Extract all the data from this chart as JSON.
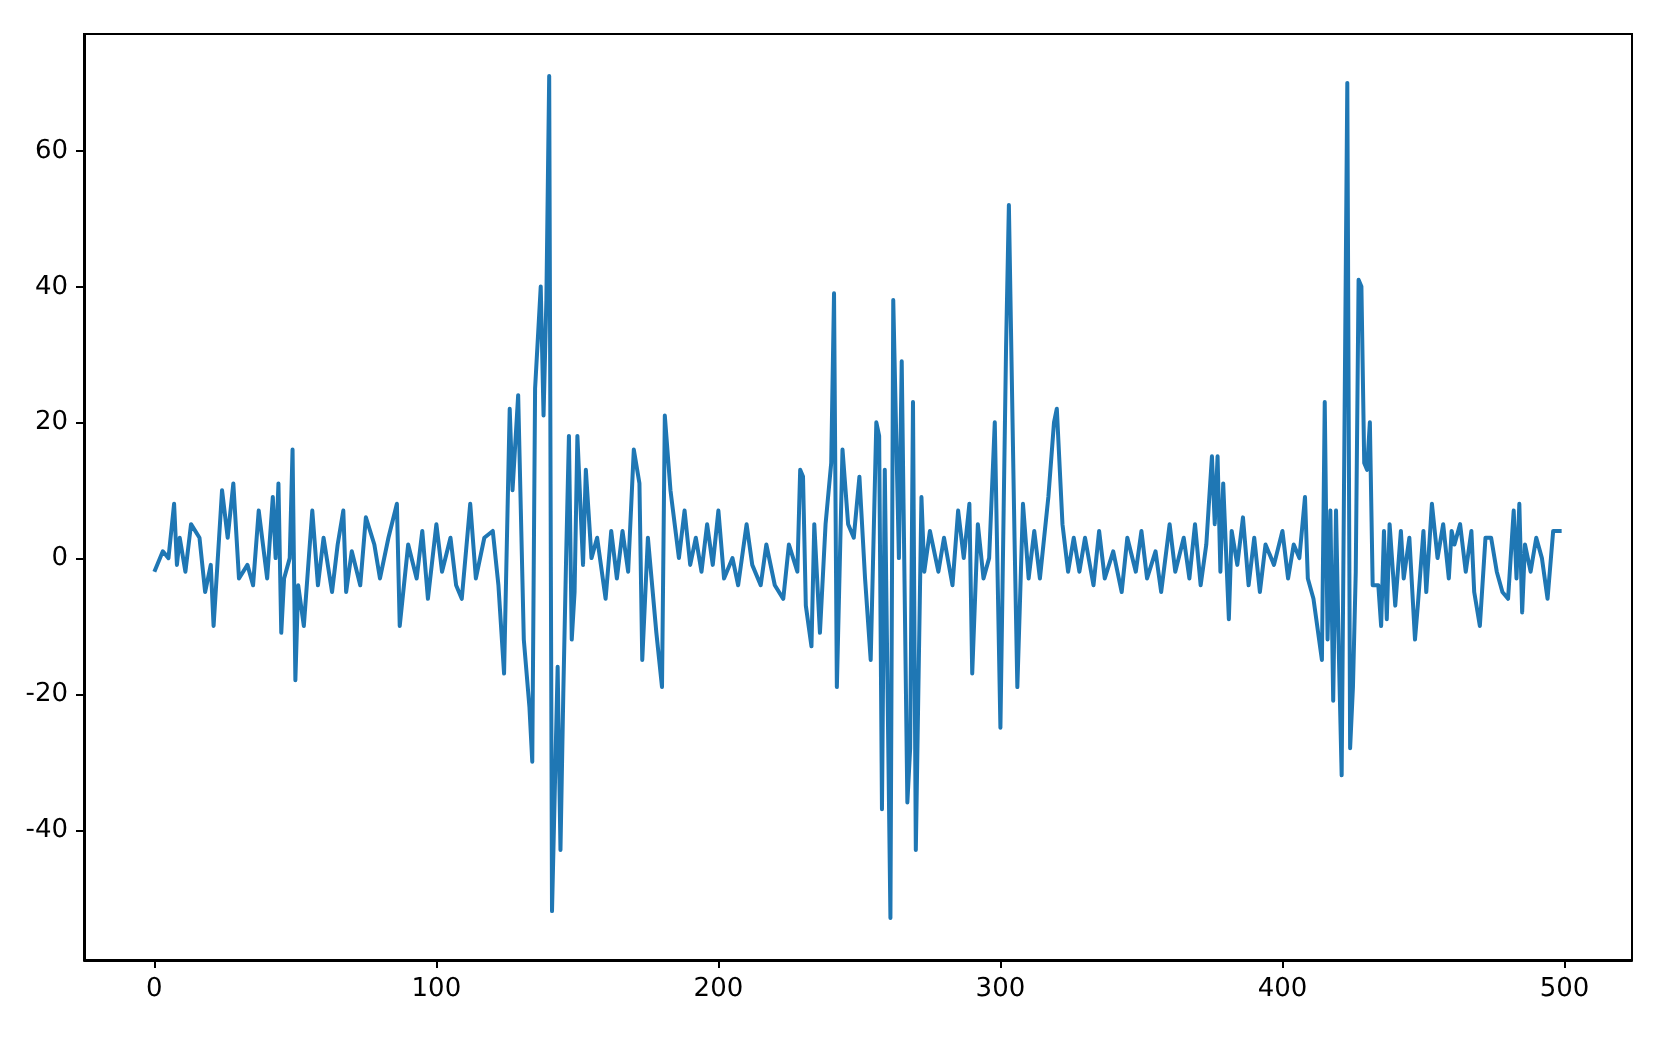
{
  "chart_data": {
    "type": "line",
    "color": "#1f77b4",
    "marker": "none",
    "line_style": "solid",
    "grid": false,
    "xlim": [
      -24.95,
      523.95
    ],
    "ylim": [
      -59.2,
      77.2
    ],
    "xticks": [
      0,
      100,
      200,
      300,
      400,
      500
    ],
    "yticks": [
      -40,
      -20,
      0,
      20,
      40,
      60
    ],
    "x": [
      0,
      3,
      5,
      7,
      8,
      9,
      11,
      13,
      16,
      18,
      20,
      21,
      24,
      26,
      28,
      30,
      33,
      35,
      37,
      40,
      42,
      43,
      44,
      45,
      46,
      48,
      49,
      50,
      51,
      53,
      56,
      58,
      60,
      63,
      65,
      67,
      68,
      70,
      73,
      75,
      78,
      80,
      83,
      86,
      87,
      90,
      93,
      95,
      97,
      100,
      102,
      105,
      107,
      109,
      112,
      114,
      117,
      120,
      122,
      124,
      126,
      127,
      129,
      131,
      133,
      134,
      135,
      137,
      138,
      139,
      140,
      141,
      143,
      144,
      145,
      146,
      147,
      148,
      149,
      150,
      152,
      153,
      155,
      157,
      160,
      162,
      164,
      166,
      168,
      170,
      172,
      173,
      175,
      178,
      180,
      181,
      183,
      186,
      188,
      190,
      192,
      194,
      196,
      198,
      200,
      202,
      205,
      207,
      210,
      212,
      215,
      217,
      220,
      223,
      225,
      228,
      229,
      230,
      231,
      233,
      234,
      236,
      238,
      240,
      241,
      242,
      244,
      246,
      248,
      250,
      252,
      254,
      256,
      257,
      258,
      259,
      261,
      262,
      264,
      265,
      267,
      268,
      269,
      270,
      272,
      273,
      275,
      278,
      280,
      283,
      285,
      287,
      289,
      290,
      292,
      294,
      296,
      298,
      300,
      302,
      303,
      305,
      306,
      308,
      310,
      312,
      314,
      317,
      319,
      320,
      322,
      324,
      326,
      328,
      330,
      333,
      335,
      337,
      340,
      343,
      345,
      348,
      350,
      352,
      355,
      357,
      360,
      362,
      365,
      367,
      369,
      371,
      373,
      375,
      376,
      377,
      378,
      379,
      381,
      382,
      384,
      386,
      388,
      390,
      392,
      394,
      397,
      400,
      402,
      404,
      406,
      408,
      409,
      411,
      414,
      415,
      416,
      417,
      418,
      419,
      420,
      421,
      423,
      424,
      425,
      426,
      427,
      428,
      429,
      430,
      431,
      432,
      434,
      435,
      436,
      437,
      438,
      440,
      442,
      443,
      445,
      447,
      448,
      450,
      451,
      453,
      455,
      457,
      459,
      460,
      461,
      463,
      465,
      467,
      468,
      470,
      472,
      474,
      476,
      478,
      480,
      482,
      483,
      484,
      485,
      486,
      488,
      490,
      492,
      494,
      496,
      499
    ],
    "values": [
      -2,
      1,
      0,
      8,
      -1,
      3,
      -2,
      5,
      3,
      -5,
      -1,
      -10,
      10,
      3,
      11,
      -3,
      -1,
      -4,
      7,
      -3,
      9,
      0,
      11,
      -11,
      -3,
      0,
      16,
      -18,
      -4,
      -10,
      7,
      -4,
      3,
      -5,
      2,
      7,
      -5,
      1,
      -4,
      6,
      2,
      -3,
      3,
      8,
      -10,
      2,
      -3,
      4,
      -6,
      5,
      -2,
      3,
      -4,
      -6,
      8,
      -3,
      3,
      4,
      -4,
      -17,
      22,
      10,
      24,
      -12,
      -22,
      -30,
      25,
      40,
      21,
      38,
      71,
      -52,
      -16,
      -43,
      -20,
      0,
      18,
      -12,
      -5,
      18,
      -1,
      13,
      0,
      3,
      -6,
      4,
      -3,
      4,
      -2,
      16,
      11,
      -15,
      3,
      -11,
      -19,
      21,
      10,
      0,
      7,
      -1,
      3,
      -2,
      5,
      -1,
      7,
      -3,
      0,
      -4,
      5,
      -1,
      -4,
      2,
      -4,
      -6,
      2,
      -2,
      13,
      12,
      -7,
      -13,
      5,
      -11,
      5,
      14,
      39,
      -19,
      16,
      5,
      3,
      12,
      -3,
      -15,
      20,
      18,
      -37,
      13,
      -53,
      38,
      0,
      29,
      -36,
      -28,
      23,
      -43,
      9,
      -2,
      4,
      -2,
      3,
      -4,
      7,
      0,
      8,
      -17,
      5,
      -3,
      0,
      20,
      -25,
      31,
      52,
      3,
      -19,
      8,
      -3,
      4,
      -3,
      9,
      20,
      22,
      5,
      -2,
      3,
      -2,
      3,
      -4,
      4,
      -3,
      1,
      -5,
      3,
      -2,
      4,
      -3,
      1,
      -5,
      5,
      -2,
      3,
      -3,
      5,
      -4,
      2,
      15,
      5,
      15,
      -2,
      11,
      -9,
      4,
      -1,
      6,
      -4,
      3,
      -5,
      2,
      -1,
      4,
      -3,
      2,
      0,
      9,
      -3,
      -6,
      -15,
      23,
      -12,
      7,
      -21,
      7,
      -14,
      -32,
      70,
      -28,
      -19,
      -2,
      41,
      40,
      14,
      13,
      20,
      -4,
      -4,
      -10,
      4,
      -9,
      5,
      -7,
      4,
      -3,
      3,
      -12,
      -7,
      4,
      -5,
      8,
      0,
      5,
      -3,
      4,
      2,
      5,
      -2,
      4,
      -5,
      -10,
      3,
      3,
      -2,
      -5,
      -6,
      7,
      -3,
      8,
      -8,
      2,
      -2,
      3,
      0,
      -6,
      4,
      4
    ]
  }
}
